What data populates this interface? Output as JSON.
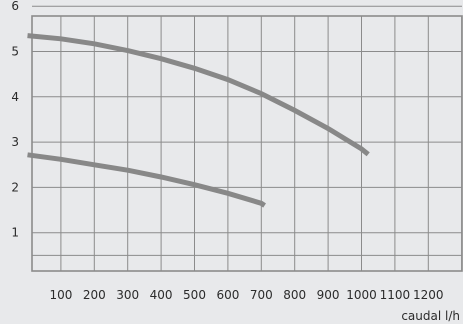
{
  "chart_data": {
    "type": "line",
    "title": "",
    "xlabel": "caudal l/h",
    "ylabel": "",
    "xlim": [
      0,
      1300
    ],
    "ylim": [
      0,
      6
    ],
    "x_ticks": [
      "100",
      "200",
      "300",
      "400",
      "500",
      "600",
      "700",
      "800",
      "900",
      "1000",
      "1100",
      "1200"
    ],
    "y_ticks": [
      "1",
      "2",
      "3",
      "4",
      "5",
      "6"
    ],
    "grid": true,
    "line_color": "#888888",
    "background_color": "#e8e9eb",
    "grid_color": "#8b8b8b",
    "series": [
      {
        "x": [
          0,
          100,
          200,
          300,
          400,
          500,
          600,
          700,
          800,
          900,
          1000,
          1020
        ],
        "values": [
          5.35,
          5.28,
          5.17,
          5.02,
          4.84,
          4.63,
          4.38,
          4.07,
          3.7,
          3.3,
          2.85,
          2.73
        ]
      },
      {
        "x": [
          0,
          100,
          200,
          300,
          400,
          500,
          600,
          700,
          710
        ],
        "values": [
          2.72,
          2.62,
          2.5,
          2.38,
          2.23,
          2.06,
          1.87,
          1.65,
          1.6
        ]
      }
    ]
  }
}
